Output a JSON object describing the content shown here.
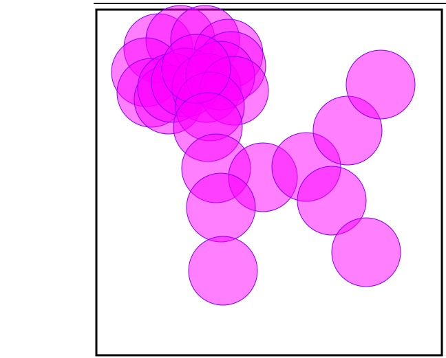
{
  "diagram": {
    "kind": "overlapping-circles",
    "colors": {
      "fill": "#ff00ff",
      "stroke": "#7f00ff",
      "frame": "#000000",
      "background": "#ffffff"
    },
    "fill_opacity": 0.5
  }
}
